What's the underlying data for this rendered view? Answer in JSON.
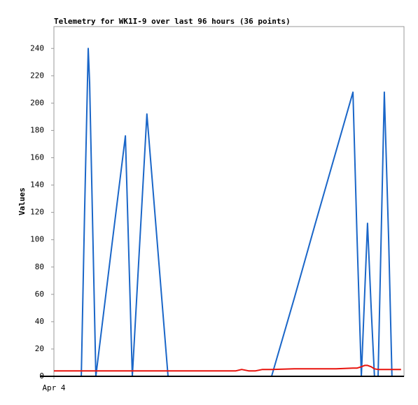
{
  "chart_data": {
    "type": "line",
    "title": "Telemetry for WK1I-9 over last 96 hours (36 points)",
    "y_label": "Values",
    "x": [
      0,
      4.4,
      7.5,
      8.4,
      9.4,
      9.8,
      11.5,
      15.9,
      19.6,
      21.5,
      25.5,
      31.3,
      37.1,
      42.8,
      49.9,
      51.5,
      53.4,
      55.3,
      57.2,
      59.7,
      65.9,
      71.6,
      77.4,
      82,
      83.1,
      84.3,
      85.2,
      86,
      87,
      87.9,
      88.9,
      90.6,
      91.8,
      92.7,
      94.1,
      95.2
    ],
    "series": [
      {
        "color": "#1a66c8",
        "values": [
          0,
          0,
          0,
          120,
          240,
          215,
          0,
          96,
          176,
          0,
          192,
          0,
          0,
          0,
          0,
          0,
          0,
          0,
          0,
          0,
          57,
          111,
          165,
          208,
          104,
          0,
          60,
          112,
          50,
          0,
          0,
          208,
          100,
          0,
          0,
          0
        ]
      },
      {
        "color": "#e8120c",
        "values": [
          4,
          4,
          4,
          4,
          4,
          4,
          4,
          4,
          4,
          4,
          4,
          4,
          4,
          4,
          4,
          5,
          4,
          4,
          5,
          5,
          5.5,
          5.5,
          5.5,
          6,
          6,
          7,
          8,
          8,
          7,
          5.5,
          5,
          5,
          5,
          5,
          5,
          5
        ]
      }
    ],
    "xlim": [
      0,
      96
    ],
    "xticks": [
      {
        "value": 0,
        "label": "Apr 4"
      }
    ],
    "ylim": [
      0,
      256
    ],
    "yticks": [
      0,
      20,
      40,
      60,
      80,
      100,
      120,
      140,
      160,
      180,
      200,
      220,
      240
    ]
  }
}
